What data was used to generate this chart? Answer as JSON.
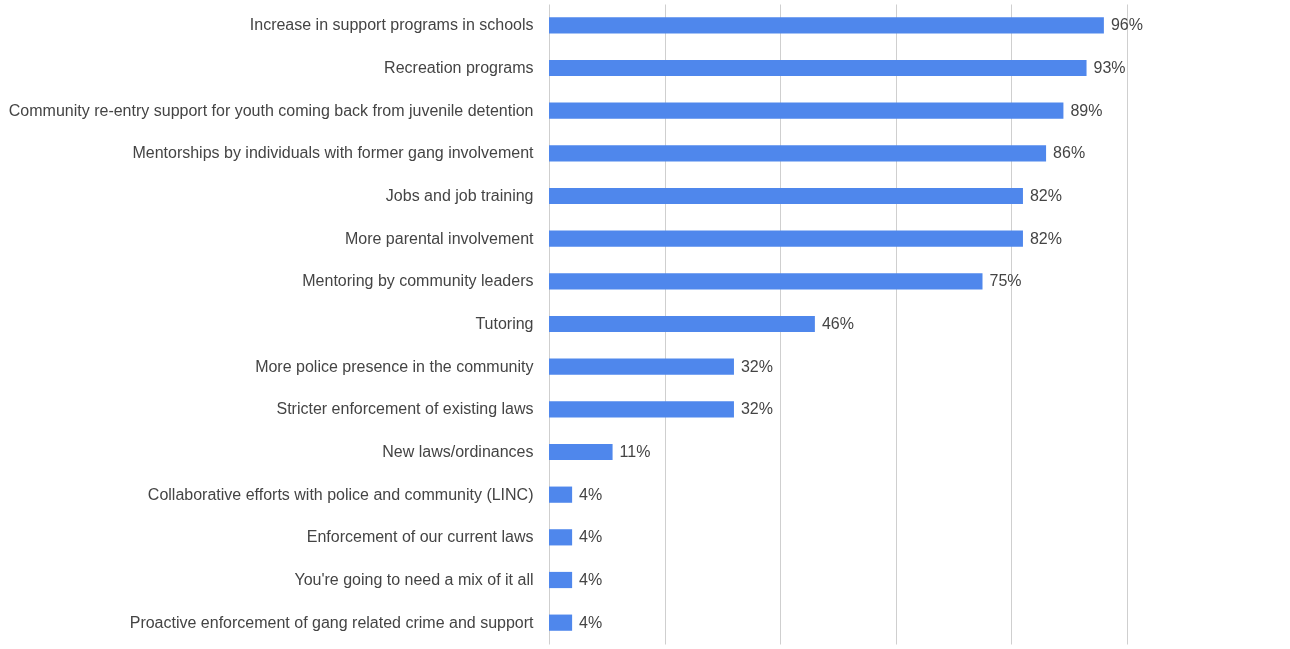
{
  "chart_data": {
    "type": "bar",
    "orientation": "horizontal",
    "categories": [
      "Increase in support programs in schools",
      "Recreation programs",
      "Community re-entry support for youth coming back from juvenile detention",
      "Mentorships by individuals with former gang involvement",
      "Jobs and job training",
      "More parental involvement",
      "Mentoring by community leaders",
      "Tutoring",
      "More police presence in the community",
      "Stricter enforcement of existing laws",
      "New laws/ordinances",
      "Collaborative efforts with police and community (LINC)",
      "Enforcement of our current laws",
      "You're going to need a mix of it all",
      "Proactive enforcement of gang related crime and support"
    ],
    "values": [
      96,
      93,
      89,
      86,
      82,
      82,
      75,
      46,
      32,
      32,
      11,
      4,
      4,
      4,
      4
    ],
    "value_labels": [
      "96%",
      "93%",
      "89%",
      "86%",
      "82%",
      "82%",
      "75%",
      "46%",
      "32%",
      "32%",
      "11%",
      "4%",
      "4%",
      "4%",
      "4%"
    ],
    "color": "#4f87ec",
    "xlim": [
      0,
      100
    ],
    "xticks": [
      {
        "value": 0,
        "label": null
      },
      {
        "value": 20,
        "label": null
      },
      {
        "value": 40,
        "label": null
      },
      {
        "value": 60,
        "label": null
      },
      {
        "value": 80,
        "label": null
      },
      {
        "value": 100,
        "label": null
      }
    ],
    "grid": "x"
  }
}
